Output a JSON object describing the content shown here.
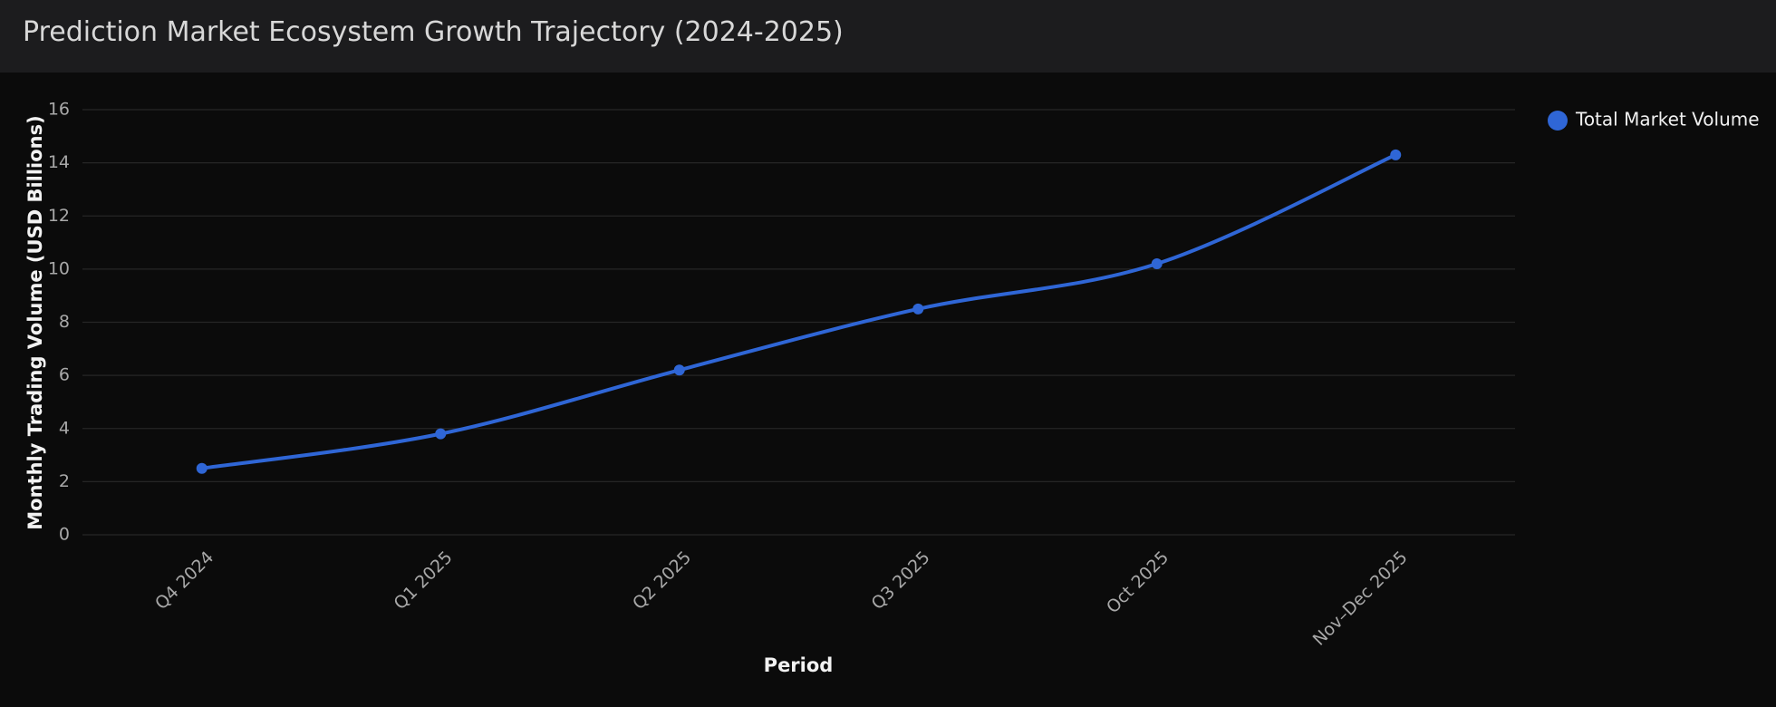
{
  "chart_data": {
    "type": "line",
    "title": "Prediction Market Ecosystem Growth Trajectory (2024-2025)",
    "xlabel": "Period",
    "ylabel": "Monthly Trading Volume (USD Billions)",
    "categories": [
      "Q4 2024",
      "Q1 2025",
      "Q2 2025",
      "Q3 2025",
      "Oct 2025",
      "Nov–Dec 2025"
    ],
    "series": [
      {
        "name": "Total Market Volume",
        "color": "#2f66d6",
        "values": [
          2.5,
          3.8,
          6.2,
          8.5,
          10.2,
          14.3
        ]
      }
    ],
    "ylim": [
      0,
      16
    ],
    "yticks": [
      0,
      2,
      4,
      6,
      8,
      10,
      12,
      14,
      16
    ],
    "grid": true,
    "smooth": true,
    "legend": "top-right"
  }
}
